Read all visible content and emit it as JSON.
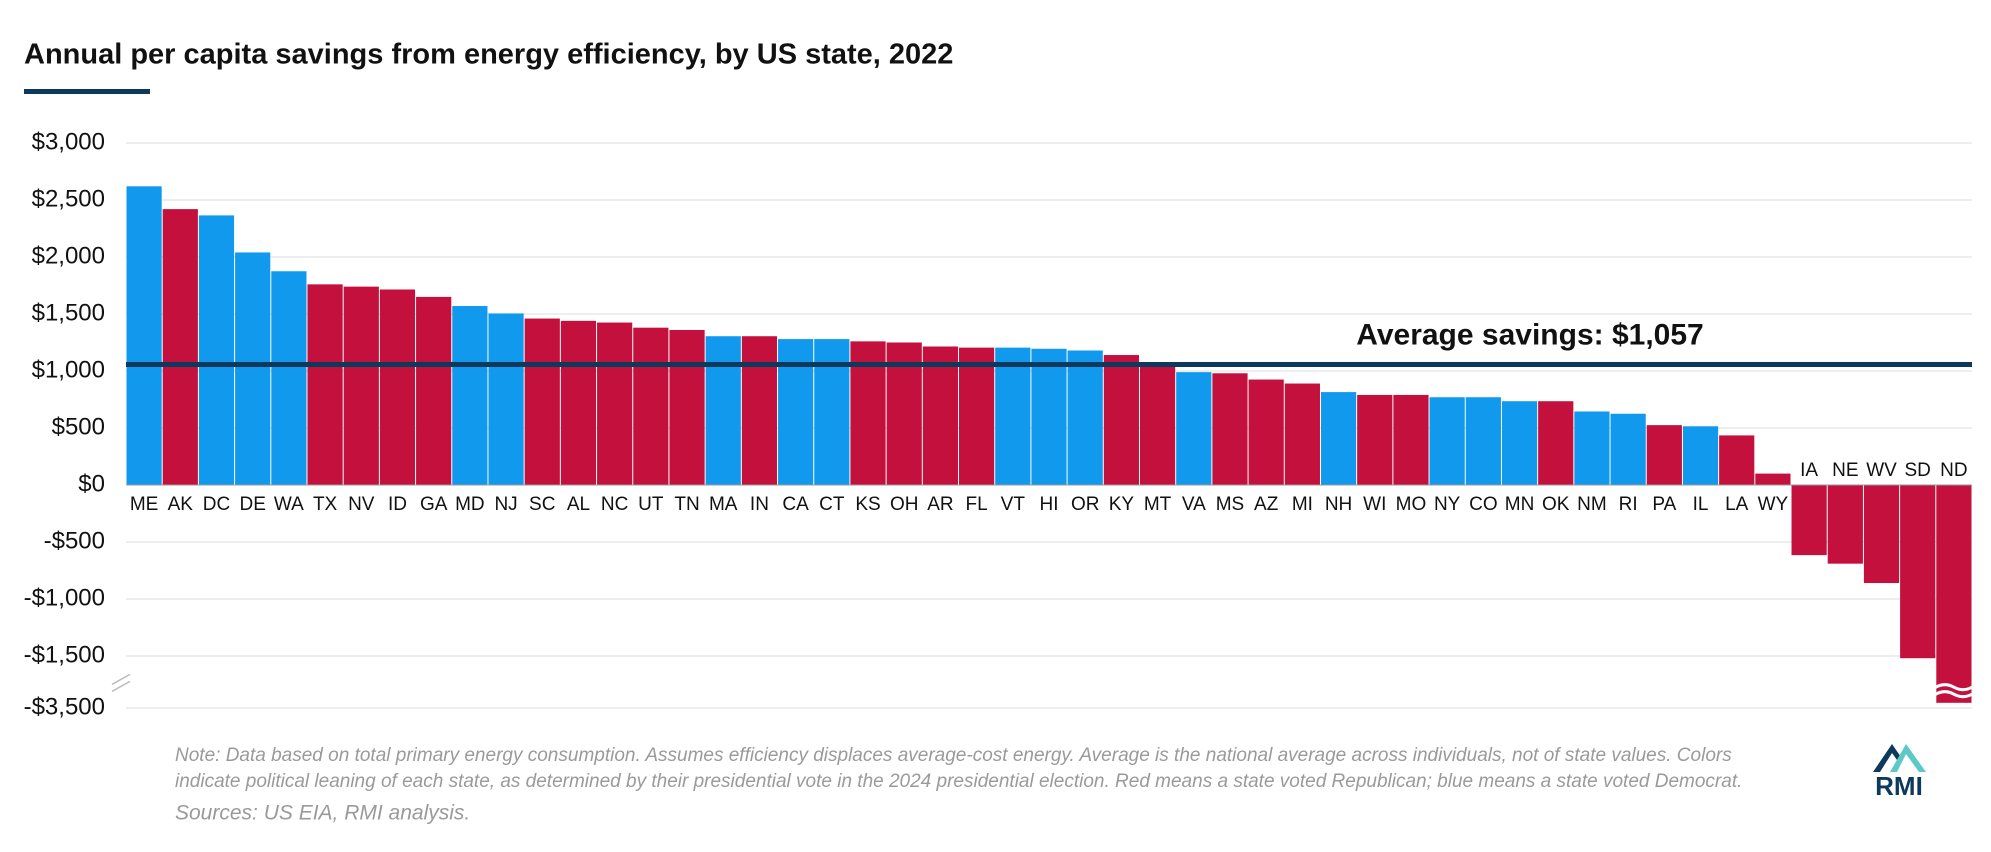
{
  "chart_data": {
    "type": "bar",
    "title": "Annual per capita savings from energy efficiency, by US state, 2022",
    "categories": [
      "ME",
      "AK",
      "DC",
      "DE",
      "WA",
      "TX",
      "NV",
      "ID",
      "GA",
      "MD",
      "NJ",
      "SC",
      "AL",
      "NC",
      "UT",
      "TN",
      "MA",
      "IN",
      "CA",
      "CT",
      "KS",
      "OH",
      "AR",
      "FL",
      "VT",
      "HI",
      "OR",
      "KY",
      "MT",
      "VA",
      "MS",
      "AZ",
      "MI",
      "NH",
      "WI",
      "MO",
      "NY",
      "CO",
      "MN",
      "OK",
      "NM",
      "RI",
      "PA",
      "IL",
      "LA",
      "WY",
      "IA",
      "NE",
      "WV",
      "SD",
      "ND"
    ],
    "values": [
      2620,
      2420,
      2365,
      2040,
      1875,
      1760,
      1740,
      1715,
      1650,
      1570,
      1505,
      1460,
      1440,
      1425,
      1380,
      1360,
      1305,
      1305,
      1280,
      1280,
      1260,
      1250,
      1215,
      1205,
      1205,
      1195,
      1180,
      1140,
      1060,
      990,
      980,
      925,
      890,
      815,
      790,
      790,
      770,
      770,
      735,
      735,
      645,
      625,
      525,
      515,
      435,
      100,
      -615,
      -690,
      -860,
      -1585,
      -3300
    ],
    "colors": [
      "#1199ee",
      "#c3103d",
      "#1199ee",
      "#1199ee",
      "#1199ee",
      "#c3103d",
      "#c3103d",
      "#c3103d",
      "#c3103d",
      "#1199ee",
      "#1199ee",
      "#c3103d",
      "#c3103d",
      "#c3103d",
      "#c3103d",
      "#c3103d",
      "#1199ee",
      "#c3103d",
      "#1199ee",
      "#1199ee",
      "#c3103d",
      "#c3103d",
      "#c3103d",
      "#c3103d",
      "#1199ee",
      "#1199ee",
      "#1199ee",
      "#c3103d",
      "#c3103d",
      "#1199ee",
      "#c3103d",
      "#c3103d",
      "#c3103d",
      "#1199ee",
      "#c3103d",
      "#c3103d",
      "#1199ee",
      "#1199ee",
      "#1199ee",
      "#c3103d",
      "#1199ee",
      "#1199ee",
      "#c3103d",
      "#1199ee",
      "#c3103d",
      "#c3103d",
      "#c3103d",
      "#c3103d",
      "#c3103d",
      "#c3103d",
      "#c3103d"
    ],
    "ylim": [
      -3500,
      3000
    ],
    "yticks": [
      {
        "value": 3000,
        "label": "$3,000"
      },
      {
        "value": 2500,
        "label": "$2,500"
      },
      {
        "value": 2000,
        "label": "$2,000"
      },
      {
        "value": 1500,
        "label": "$1,500"
      },
      {
        "value": 1000,
        "label": "$1,000"
      },
      {
        "value": 500,
        "label": "$500"
      },
      {
        "value": 0,
        "label": "$0"
      },
      {
        "value": -500,
        "label": "-$500"
      },
      {
        "value": -1000,
        "label": "-$1,000"
      },
      {
        "value": -1500,
        "label": "-$1,500"
      },
      {
        "value": -3500,
        "label": "-$3,500"
      }
    ],
    "axis_break": true,
    "grid": true,
    "average": 1057,
    "average_label": "Average savings: $1,057",
    "average_color": "#0d3a5c",
    "note": [
      "Note: Data based on total primary energy consumption. Assumes efficiency displaces average-cost energy. Average is the national average across individuals, not of state values. Colors",
      "indicate political leaning of each state, as determined by their presidential vote in the 2024 presidential election. Red means a state voted Republican; blue means a state voted Democrat."
    ],
    "source": "Sources: US EIA, RMI analysis.",
    "logo": "RMI"
  }
}
